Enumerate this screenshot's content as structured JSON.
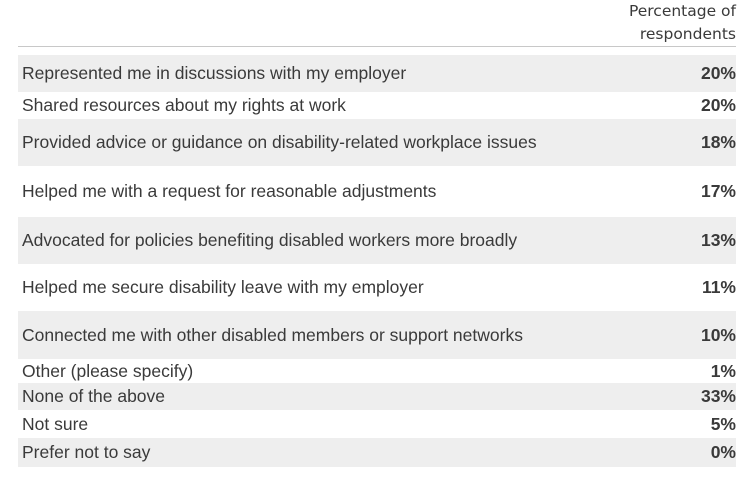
{
  "header": {
    "col_title_line1": "Percentage of",
    "col_title_line2": "respondents"
  },
  "chart_data": {
    "type": "table",
    "columns": [
      "",
      "Percentage of respondents"
    ],
    "rows": [
      {
        "label": "Represented me in discussions with my employer",
        "value": "20%"
      },
      {
        "label": "Shared resources about my rights at work",
        "value": "20%"
      },
      {
        "label": "Provided advice or guidance on disability-related workplace issues",
        "value": "18%"
      },
      {
        "label": "Helped me with a request for reasonable adjustments",
        "value": "17%"
      },
      {
        "label": "Advocated for policies benefiting disabled workers more broadly",
        "value": "13%"
      },
      {
        "label": "Helped me secure disability leave with my employer",
        "value": "11%"
      },
      {
        "label": "Connected me with other disabled members or support networks",
        "value": "10%"
      },
      {
        "label": "Other (please specify)",
        "value": "1%"
      },
      {
        "label": "None of the above",
        "value": "33%"
      },
      {
        "label": "Not sure",
        "value": "5%"
      },
      {
        "label": "Prefer not to say",
        "value": "0%"
      }
    ]
  }
}
